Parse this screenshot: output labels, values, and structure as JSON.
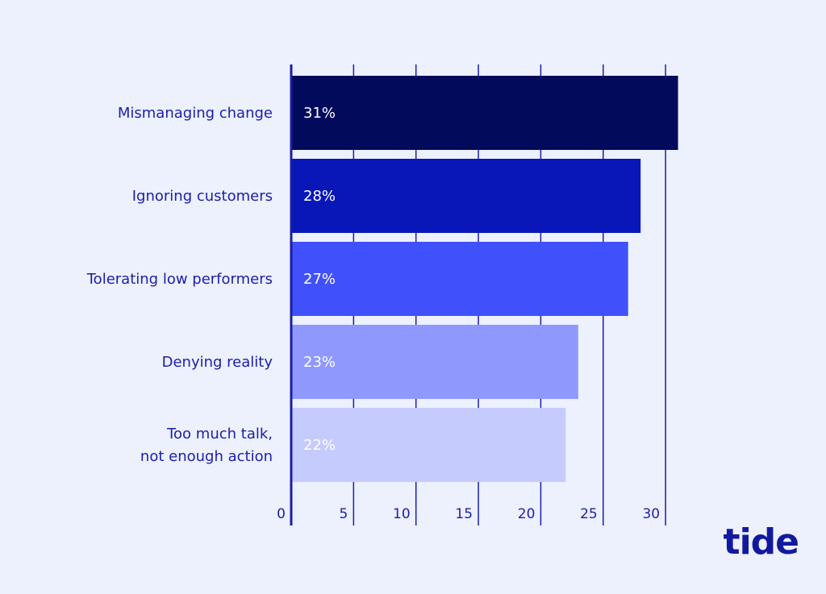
{
  "brand": {
    "logo_text": "tide",
    "logo_color": "#111a9e"
  },
  "colors": {
    "background": "#edf0fd",
    "axis": "#1a1fa8",
    "label": "#1a1fa8"
  },
  "chart_data": {
    "type": "bar",
    "orientation": "horizontal",
    "categories": [
      "Mismanaging change",
      "Ignoring customers",
      "Tolerating low performers",
      "Denying reality",
      "Too much talk,\nnot enough action"
    ],
    "values": [
      31,
      28,
      27,
      23,
      22
    ],
    "value_labels": [
      "31%",
      "28%",
      "27%",
      "23%",
      "22%"
    ],
    "bar_colors": [
      "#020a5c",
      "#0a17b8",
      "#4051fb",
      "#8f99fd",
      "#c6cbfd"
    ],
    "xticks": [
      0,
      5,
      10,
      15,
      20,
      25,
      30
    ],
    "xlim": [
      0,
      30.5
    ],
    "grid": true,
    "title": "",
    "xlabel": "",
    "ylabel": ""
  }
}
